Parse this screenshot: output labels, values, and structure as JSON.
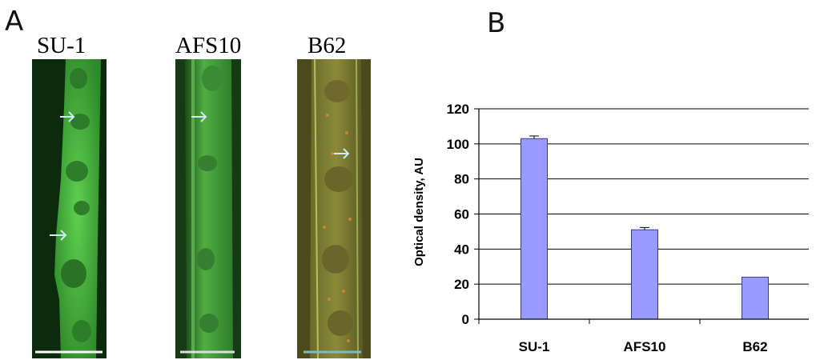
{
  "panels": {
    "a": {
      "letter": "A",
      "images": [
        {
          "label": "SU-1",
          "tone": "green"
        },
        {
          "label": "AFS10",
          "tone": "green"
        },
        {
          "label": "B62",
          "tone": "orange-green"
        }
      ]
    },
    "b": {
      "letter": "B"
    }
  },
  "chart_data": {
    "type": "bar",
    "categories": [
      "SU-1",
      "AFS10",
      "B62"
    ],
    "values": [
      103,
      51,
      24
    ],
    "error": [
      1.5,
      1.3,
      0
    ],
    "title": "",
    "xlabel": "",
    "ylabel": "Optical density, AU",
    "ylim": [
      0,
      120
    ],
    "yticks": [
      0,
      20,
      40,
      60,
      80,
      100,
      120
    ],
    "grid": true,
    "bar_color": "#9b9bff"
  }
}
